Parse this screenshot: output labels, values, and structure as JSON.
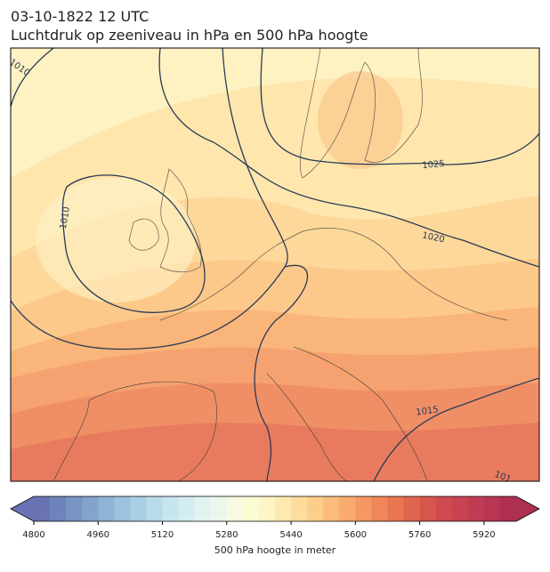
{
  "header": {
    "title": "03-10-1822 12 UTC",
    "subtitle": "Luchtdruk op zeeniveau in hPa en 500 hPa hoogte"
  },
  "map": {
    "contour_labels": [
      "1010",
      "1025",
      "1010",
      "1020",
      "1015",
      "101"
    ]
  },
  "colorbar": {
    "label": "500 hPa hoogte in meter",
    "lim": [
      4800,
      6000
    ],
    "ticks": [
      4800,
      4960,
      5120,
      5280,
      5440,
      5600,
      5760,
      5920
    ],
    "extend": "both",
    "colors": [
      "#6a73b4",
      "#6e83bc",
      "#7893c4",
      "#83a3cc",
      "#8fb3d5",
      "#9cc2dd",
      "#aacfe4",
      "#b8dbea",
      "#c6e5ef",
      "#d4edf2",
      "#e1f3f1",
      "#ecf7eb",
      "#f5fae0",
      "#fbfbd3",
      "#fef5c4",
      "#fee9b0",
      "#fedd9c",
      "#fdcd8a",
      "#fbbc7b",
      "#f9aa6e",
      "#f59863",
      "#f0865a",
      "#e97553",
      "#e0654f",
      "#d6554d",
      "#cf4a4f",
      "#c84351",
      "#c03c52",
      "#b83652",
      "#ae3050"
    ]
  }
}
